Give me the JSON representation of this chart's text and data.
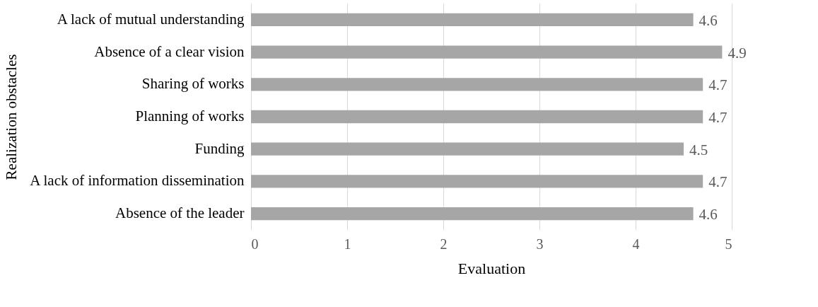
{
  "chart_data": {
    "type": "bar",
    "orientation": "horizontal",
    "xlabel": "Evaluation",
    "ylabel": "Realization obstacles",
    "categories": [
      "A lack of mutual understanding",
      "Absence of a clear vision",
      "Sharing of works",
      "Planning of works",
      "Funding",
      "A lack of information dissemination",
      "Absence of the leader"
    ],
    "values": [
      4.6,
      4.9,
      4.7,
      4.7,
      4.5,
      4.7,
      4.6
    ],
    "color": "#a6a6a6",
    "xlim": [
      0,
      5
    ],
    "xticks": [
      0,
      1,
      2,
      3,
      4,
      5
    ],
    "grid": "x",
    "data_labels": true
  }
}
